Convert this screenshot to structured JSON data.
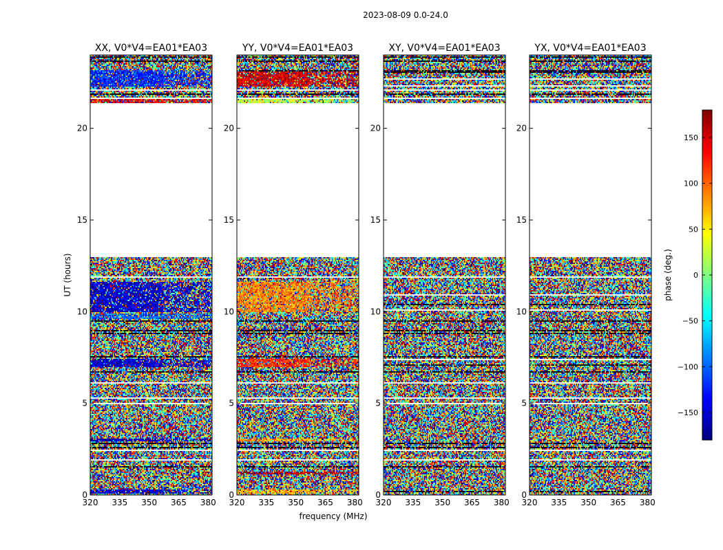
{
  "figure": {
    "suptitle": "2023-08-09 0.0-24.0"
  },
  "chart_data": {
    "type": "heatmap",
    "shared_xlabel": "frequency (MHz)",
    "shared_ylabel": "UT (hours)",
    "xlim": [
      320,
      382
    ],
    "ylim": [
      0,
      24
    ],
    "xticks": [
      320,
      335,
      350,
      365,
      380
    ],
    "yticks": [
      0,
      5,
      10,
      15,
      20
    ],
    "data_gap_hours": [
      13.0,
      21.4
    ],
    "colorbar": {
      "label": "phase (deg.)",
      "range": [
        -180,
        180
      ],
      "ticks": [
        150,
        100,
        50,
        0,
        -50,
        -100,
        -150
      ],
      "tick_labels": [
        "150",
        "100",
        "50",
        "0",
        "−50",
        "−100",
        "−150"
      ],
      "colormap": "jet",
      "colors": [
        "#00007f",
        "#0000ff",
        "#007fff",
        "#00ffff",
        "#7fff7f",
        "#ffff00",
        "#ff7f00",
        "#ff0000",
        "#7f0000"
      ]
    },
    "panels": [
      {
        "title": "XX, V0*V4=EA01*EA03",
        "polarization": "XX",
        "dominant_phase": "blue (~-150 deg) near 10-11.5 h"
      },
      {
        "title": "YY, V0*V4=EA01*EA03",
        "polarization": "YY",
        "dominant_phase": "orange (~90 deg) near 10-11.5 h"
      },
      {
        "title": "XY, V0*V4=EA01*EA03",
        "polarization": "XY",
        "dominant_phase": "random noise"
      },
      {
        "title": "YX, V0*V4=EA01*EA03",
        "polarization": "YX",
        "dominant_phase": "random noise"
      }
    ]
  }
}
